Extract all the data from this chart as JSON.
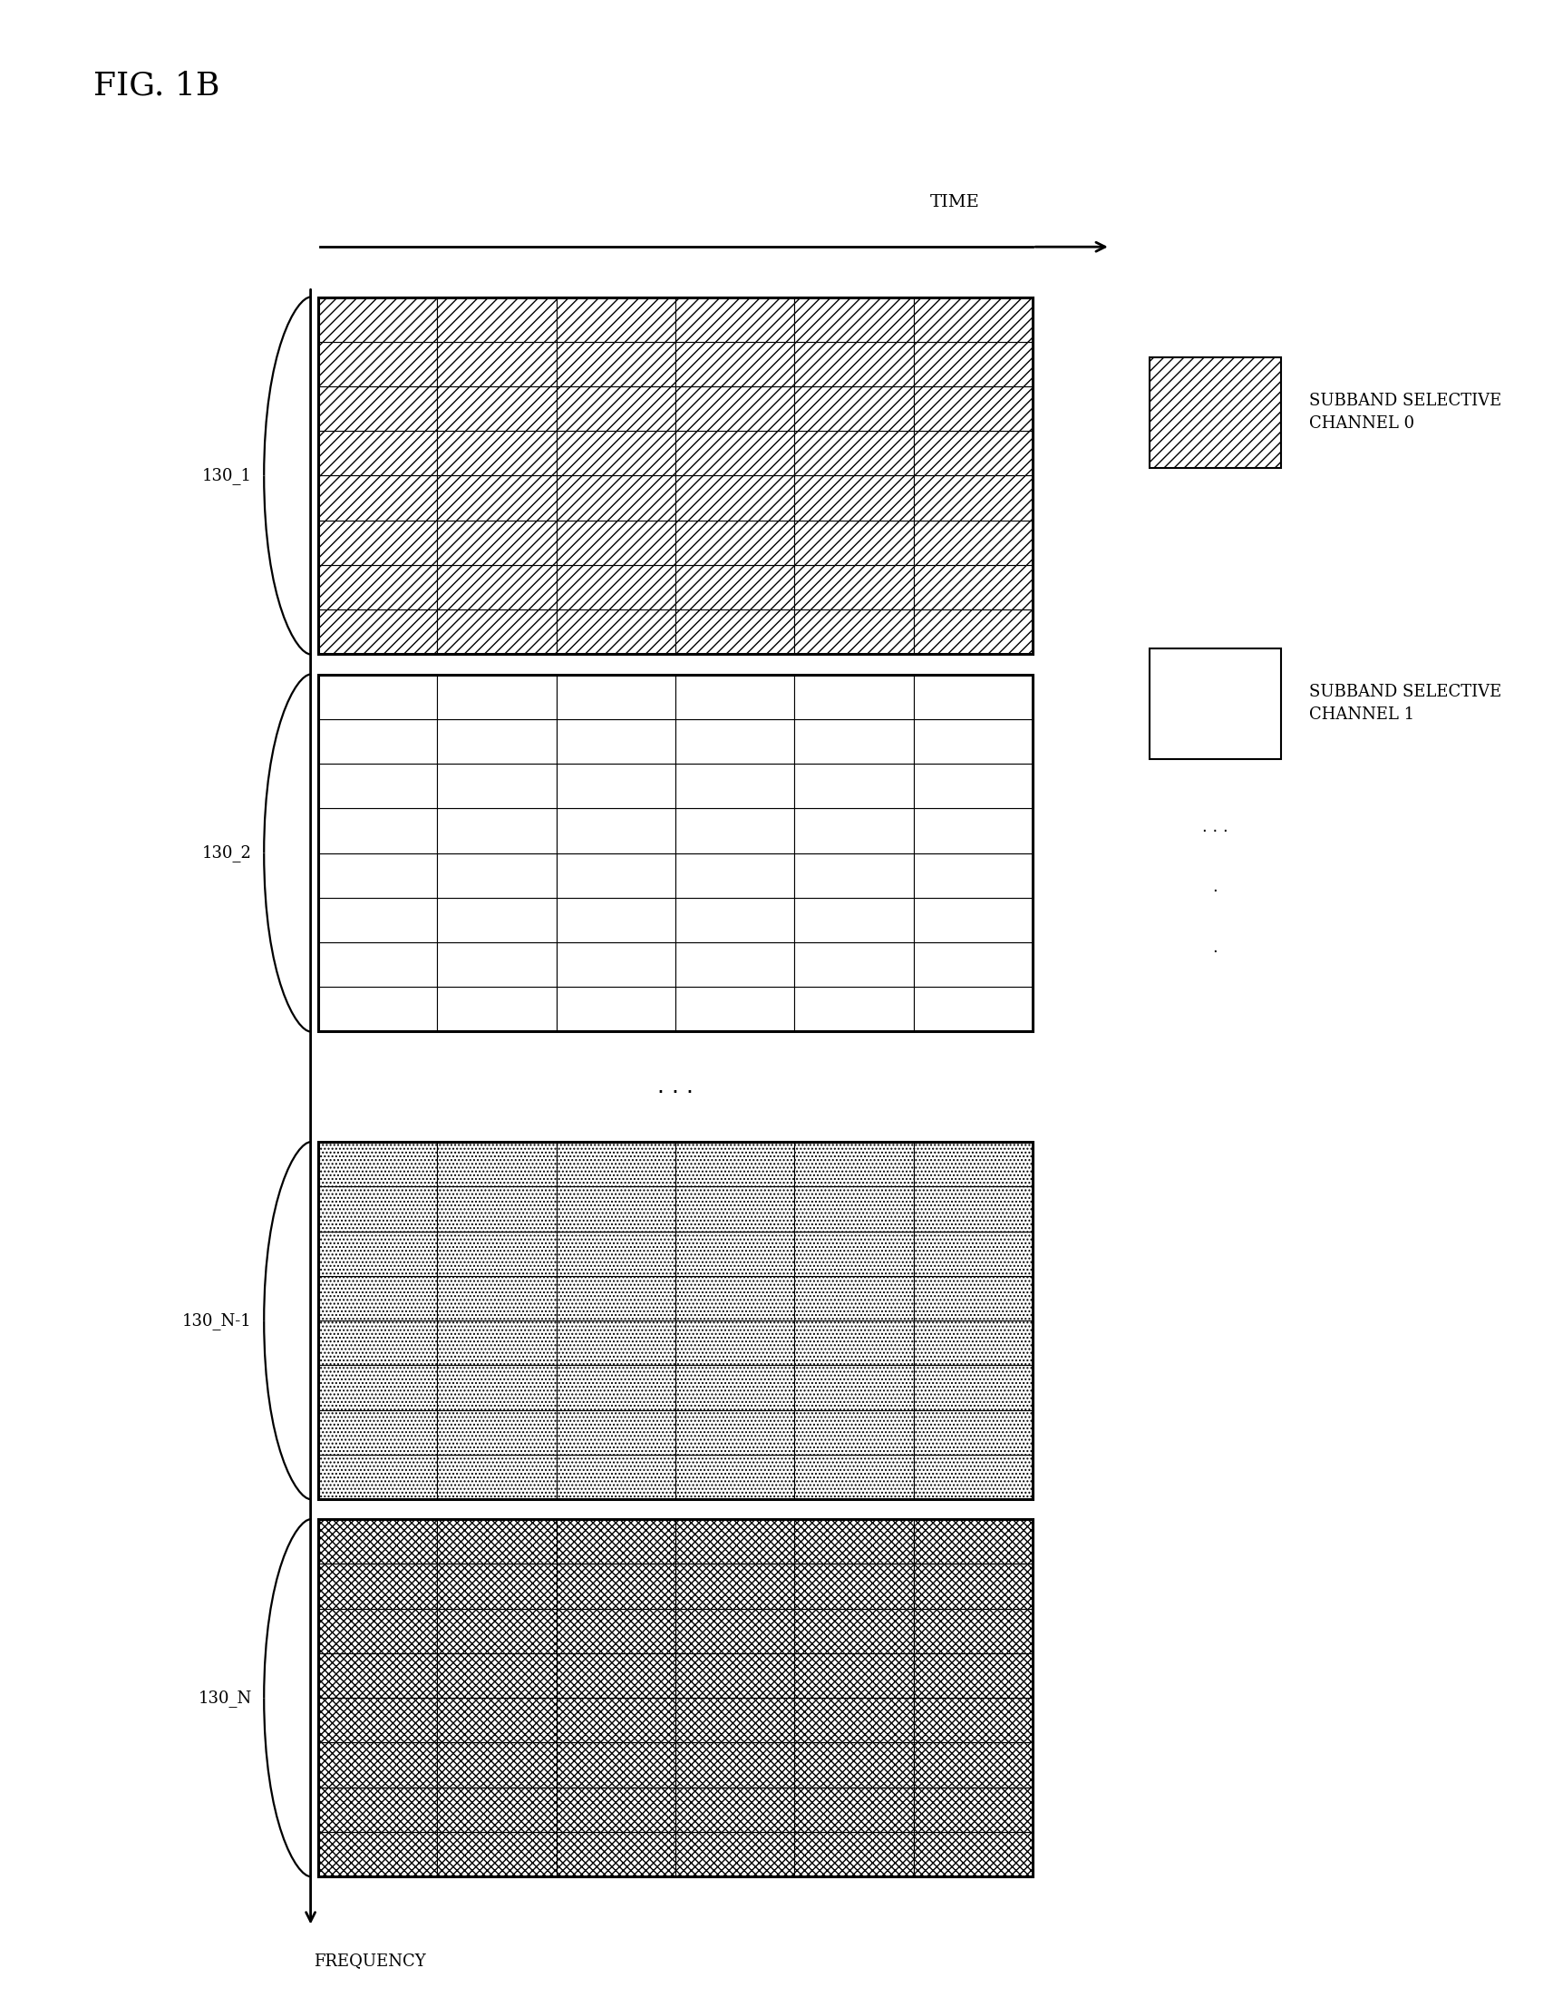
{
  "title": "FIG. 1B",
  "time_label": "TIME",
  "freq_label": "FREQUENCY",
  "legend_label_0_line1": "SUBBAND SELECTIVE",
  "legend_label_0_line2": "CHANNEL 0",
  "legend_label_1_line1": "SUBBAND SELECTIVE",
  "legend_label_1_line2": "CHANNEL 1",
  "subband_labels": [
    "130_1",
    "130_2",
    "130_N-1",
    "130_N"
  ],
  "grid_cols": 6,
  "rows_per_subband_1": 8,
  "rows_per_subband_2": 8,
  "rows_per_subband_nm1": 8,
  "rows_per_subband_n": 8,
  "fig_width": 17.13,
  "fig_height": 22.13,
  "background_color": "#ffffff",
  "hatch_ch0": "///",
  "hatch_ch1": "",
  "hatch_nm1": "....",
  "hatch_n": "xxxx"
}
